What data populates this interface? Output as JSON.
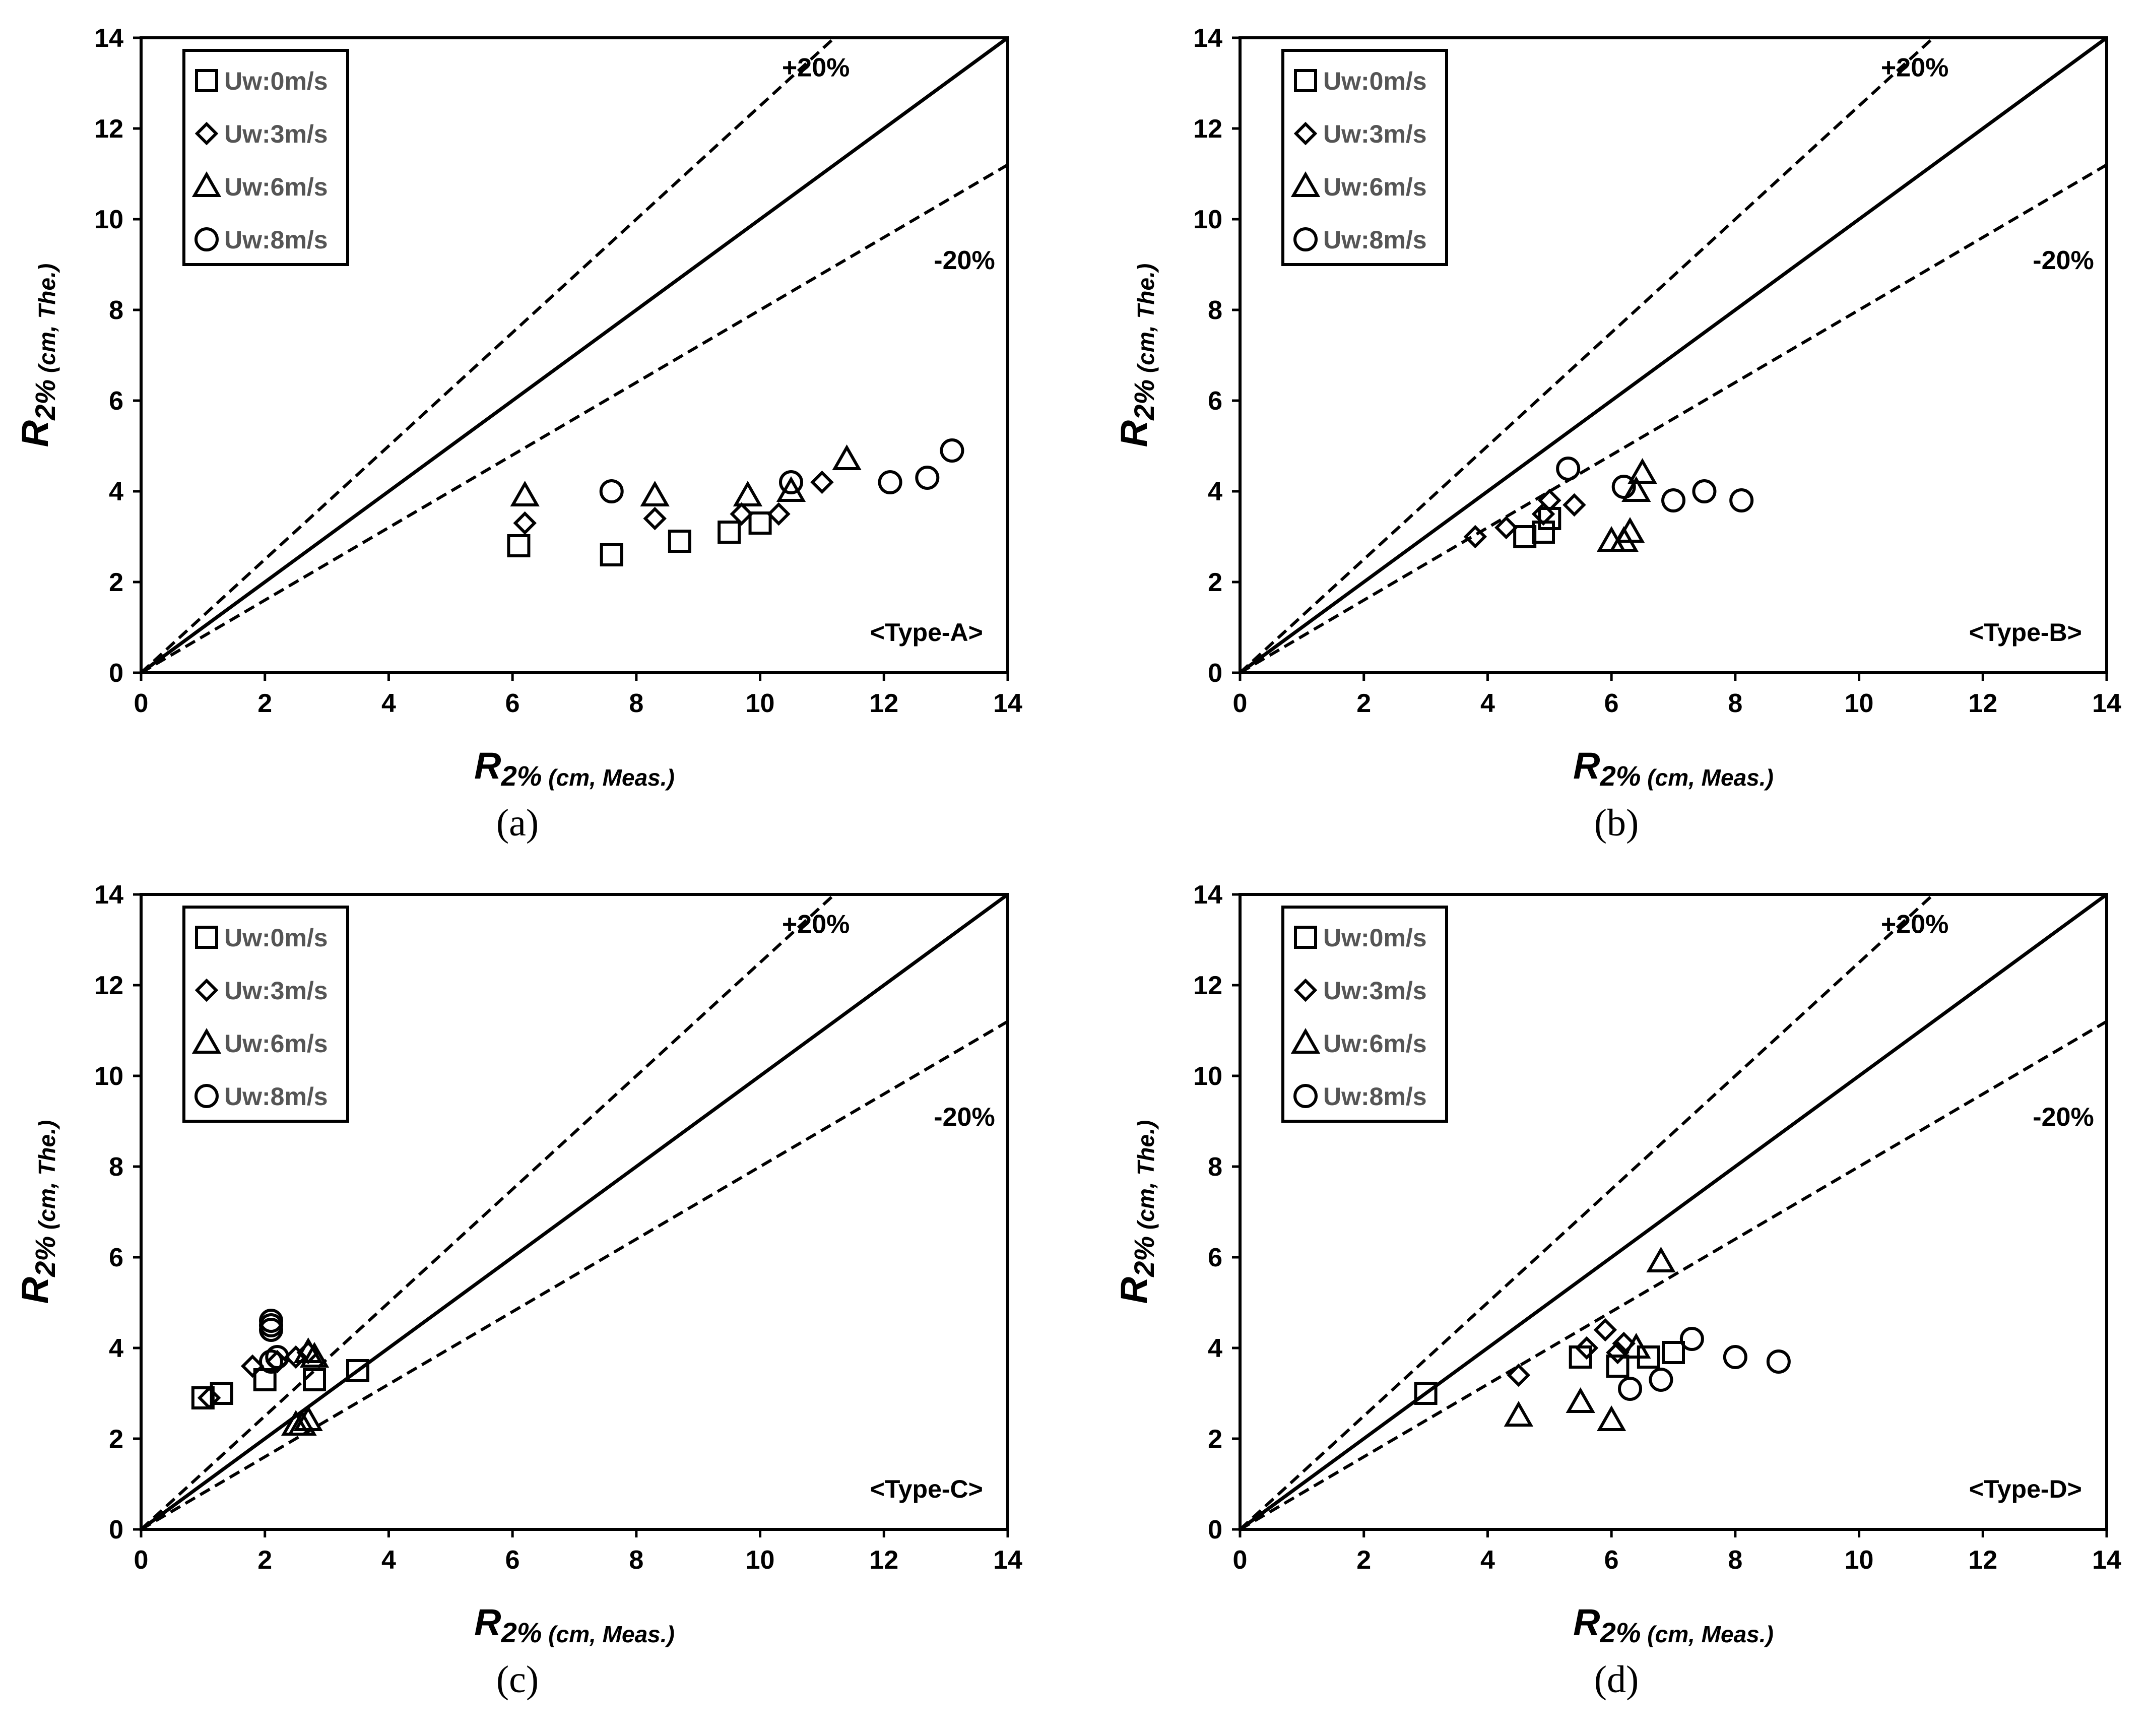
{
  "chart_data": [
    {
      "type": "scatter",
      "panel": "(a)",
      "tag": "<Type-A>",
      "xlabel": {
        "main": "R",
        "sub": "2%",
        "rest": " (cm, Meas.)"
      },
      "ylabel": {
        "main": "R",
        "sub": "2%",
        "rest": " (cm, The.)"
      },
      "xlim": [
        0,
        14
      ],
      "ylim": [
        0,
        14
      ],
      "xticks": [
        0,
        2,
        4,
        6,
        8,
        10,
        12,
        14
      ],
      "yticks": [
        0,
        2,
        4,
        6,
        8,
        10,
        12,
        14
      ],
      "reference_lines": [
        {
          "label": "",
          "slope": 1.0,
          "style": "solid"
        },
        {
          "label": "+20%",
          "slope": 1.25,
          "style": "dashed"
        },
        {
          "label": "-20%",
          "slope": 0.8,
          "style": "dashed"
        }
      ],
      "legend_position": "top-left",
      "series": [
        {
          "name": "Uw:0m/s",
          "marker": "square",
          "points": [
            [
              6.1,
              2.8
            ],
            [
              7.6,
              2.6
            ],
            [
              8.7,
              2.9
            ],
            [
              9.5,
              3.1
            ],
            [
              10.0,
              3.3
            ]
          ]
        },
        {
          "name": "Uw:3m/s",
          "marker": "diamond",
          "points": [
            [
              6.2,
              3.3
            ],
            [
              8.3,
              3.4
            ],
            [
              9.7,
              3.5
            ],
            [
              10.3,
              3.5
            ],
            [
              11.0,
              4.2
            ]
          ]
        },
        {
          "name": "Uw:6m/s",
          "marker": "triangle",
          "points": [
            [
              6.2,
              3.9
            ],
            [
              8.3,
              3.9
            ],
            [
              9.8,
              3.9
            ],
            [
              10.5,
              4.0
            ],
            [
              11.4,
              4.7
            ]
          ]
        },
        {
          "name": "Uw:8m/s",
          "marker": "circle",
          "points": [
            [
              7.6,
              4.0
            ],
            [
              10.5,
              4.2
            ],
            [
              12.1,
              4.2
            ],
            [
              12.7,
              4.3
            ],
            [
              13.1,
              4.9
            ]
          ]
        }
      ]
    },
    {
      "type": "scatter",
      "panel": "(b)",
      "tag": "<Type-B>",
      "xlabel": {
        "main": "R",
        "sub": "2%",
        "rest": " (cm, Meas.)"
      },
      "ylabel": {
        "main": "R",
        "sub": "2%",
        "rest": " (cm, The.)"
      },
      "xlim": [
        0,
        14
      ],
      "ylim": [
        0,
        14
      ],
      "xticks": [
        0,
        2,
        4,
        6,
        8,
        10,
        12,
        14
      ],
      "yticks": [
        0,
        2,
        4,
        6,
        8,
        10,
        12,
        14
      ],
      "reference_lines": [
        {
          "label": "",
          "slope": 1.0,
          "style": "solid"
        },
        {
          "label": "+20%",
          "slope": 1.25,
          "style": "dashed"
        },
        {
          "label": "-20%",
          "slope": 0.8,
          "style": "dashed"
        }
      ],
      "legend_position": "top-left",
      "series": [
        {
          "name": "Uw:0m/s",
          "marker": "square",
          "points": [
            [
              4.6,
              3.0
            ],
            [
              4.9,
              3.1
            ],
            [
              5.0,
              3.4
            ]
          ]
        },
        {
          "name": "Uw:3m/s",
          "marker": "diamond",
          "points": [
            [
              3.8,
              3.0
            ],
            [
              4.3,
              3.2
            ],
            [
              4.9,
              3.5
            ],
            [
              5.0,
              3.8
            ],
            [
              5.4,
              3.7
            ]
          ]
        },
        {
          "name": "Uw:6m/s",
          "marker": "triangle",
          "points": [
            [
              6.0,
              2.9
            ],
            [
              6.2,
              2.9
            ],
            [
              6.3,
              3.1
            ],
            [
              6.4,
              4.0
            ],
            [
              6.5,
              4.4
            ]
          ]
        },
        {
          "name": "Uw:8m/s",
          "marker": "circle",
          "points": [
            [
              5.3,
              4.5
            ],
            [
              6.2,
              4.1
            ],
            [
              7.0,
              3.8
            ],
            [
              7.5,
              4.0
            ],
            [
              8.1,
              3.8
            ]
          ]
        }
      ]
    },
    {
      "type": "scatter",
      "panel": "(c)",
      "tag": "<Type-C>",
      "xlabel": {
        "main": "R",
        "sub": "2%",
        "rest": " (cm, Meas.)"
      },
      "ylabel": {
        "main": "R",
        "sub": "2%",
        "rest": " (cm, The.)"
      },
      "xlim": [
        0,
        14
      ],
      "ylim": [
        0,
        14
      ],
      "xticks": [
        0,
        2,
        4,
        6,
        8,
        10,
        12,
        14
      ],
      "yticks": [
        0,
        2,
        4,
        6,
        8,
        10,
        12,
        14
      ],
      "reference_lines": [
        {
          "label": "",
          "slope": 1.0,
          "style": "solid"
        },
        {
          "label": "+20%",
          "slope": 1.25,
          "style": "dashed"
        },
        {
          "label": "-20%",
          "slope": 0.8,
          "style": "dashed"
        }
      ],
      "legend_position": "top-left",
      "series": [
        {
          "name": "Uw:0m/s",
          "marker": "square",
          "points": [
            [
              1.0,
              2.9
            ],
            [
              1.3,
              3.0
            ],
            [
              2.0,
              3.3
            ],
            [
              2.8,
              3.3
            ],
            [
              3.5,
              3.5
            ]
          ]
        },
        {
          "name": "Uw:3m/s",
          "marker": "diamond",
          "points": [
            [
              1.1,
              2.9
            ],
            [
              1.8,
              3.6
            ],
            [
              2.2,
              3.7
            ],
            [
              2.5,
              3.8
            ],
            [
              2.7,
              3.9
            ]
          ]
        },
        {
          "name": "Uw:6m/s",
          "marker": "triangle",
          "points": [
            [
              2.5,
              2.3
            ],
            [
              2.6,
              2.3
            ],
            [
              2.7,
              2.4
            ],
            [
              2.7,
              3.9
            ],
            [
              2.8,
              3.8
            ]
          ]
        },
        {
          "name": "Uw:8m/s",
          "marker": "circle",
          "points": [
            [
              2.1,
              3.7
            ],
            [
              2.1,
              4.5
            ],
            [
              2.1,
              4.6
            ],
            [
              2.2,
              3.8
            ],
            [
              2.1,
              4.4
            ]
          ]
        }
      ]
    },
    {
      "type": "scatter",
      "panel": "(d)",
      "tag": "<Type-D>",
      "xlabel": {
        "main": "R",
        "sub": "2%",
        "rest": " (cm, Meas.)"
      },
      "ylabel": {
        "main": "R",
        "sub": "2%",
        "rest": " (cm, The.)"
      },
      "xlim": [
        0,
        14
      ],
      "ylim": [
        0,
        14
      ],
      "xticks": [
        0,
        2,
        4,
        6,
        8,
        10,
        12,
        14
      ],
      "yticks": [
        0,
        2,
        4,
        6,
        8,
        10,
        12,
        14
      ],
      "reference_lines": [
        {
          "label": "",
          "slope": 1.0,
          "style": "solid"
        },
        {
          "label": "+20%",
          "slope": 1.25,
          "style": "dashed"
        },
        {
          "label": "-20%",
          "slope": 0.8,
          "style": "dashed"
        }
      ],
      "legend_position": "top-left",
      "series": [
        {
          "name": "Uw:0m/s",
          "marker": "square",
          "points": [
            [
              3.0,
              3.0
            ],
            [
              5.5,
              3.8
            ],
            [
              6.1,
              3.6
            ],
            [
              6.6,
              3.8
            ],
            [
              7.0,
              3.9
            ]
          ]
        },
        {
          "name": "Uw:3m/s",
          "marker": "diamond",
          "points": [
            [
              4.5,
              3.4
            ],
            [
              5.6,
              4.0
            ],
            [
              5.9,
              4.4
            ],
            [
              6.1,
              3.9
            ],
            [
              6.2,
              4.1
            ]
          ]
        },
        {
          "name": "Uw:6m/s",
          "marker": "triangle",
          "points": [
            [
              4.5,
              2.5
            ],
            [
              5.5,
              2.8
            ],
            [
              6.0,
              2.4
            ],
            [
              6.4,
              4.0
            ],
            [
              6.8,
              5.9
            ]
          ]
        },
        {
          "name": "Uw:8m/s",
          "marker": "circle",
          "points": [
            [
              6.3,
              3.1
            ],
            [
              6.8,
              3.3
            ],
            [
              7.3,
              4.2
            ],
            [
              8.0,
              3.8
            ],
            [
              8.7,
              3.7
            ]
          ]
        }
      ]
    }
  ]
}
